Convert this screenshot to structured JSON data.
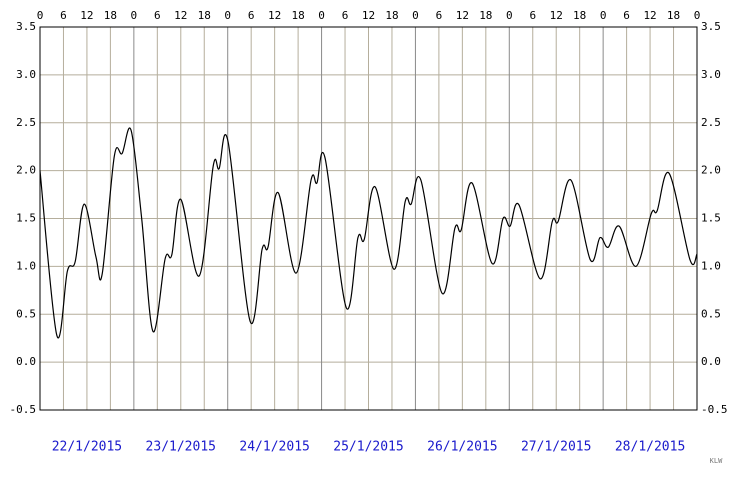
{
  "chart_data": {
    "type": "line",
    "x": [
      0,
      4.3,
      7,
      9,
      11.3,
      14.3,
      15.9,
      19,
      21,
      23.3,
      26,
      28.9,
      32,
      33.7,
      36,
      40.7,
      44.3,
      45.8,
      48.1,
      53.7,
      56.8,
      58.3,
      60.9,
      65.5,
      69.3,
      70.8,
      72.9,
      78.3,
      81.3,
      82.9,
      85.7,
      90.5,
      93.4,
      94.9,
      97.4,
      102.8,
      106.1,
      107.7,
      110.5,
      115.6,
      118.4,
      120.2,
      122.5,
      127.9,
      131,
      132.5,
      135.8,
      140.7,
      143.2,
      145.3,
      148.1,
      152.4,
      156.3,
      157.8,
      160.9,
      166.2,
      168
    ],
    "series": [
      {
        "color": "#000000",
        "values": [
          2.0,
          0.28,
          0.95,
          1.05,
          1.65,
          1.1,
          0.92,
          2.15,
          2.18,
          2.42,
          1.5,
          0.32,
          1.08,
          1.12,
          1.7,
          0.9,
          2.05,
          2.02,
          2.3,
          0.43,
          1.18,
          1.2,
          1.77,
          0.93,
          1.9,
          1.87,
          2.13,
          0.57,
          1.3,
          1.28,
          1.83,
          0.97,
          1.68,
          1.65,
          1.9,
          0.72,
          1.4,
          1.38,
          1.87,
          1.03,
          1.5,
          1.42,
          1.64,
          0.87,
          1.47,
          1.47,
          1.9,
          1.07,
          1.3,
          1.2,
          1.42,
          1.0,
          1.55,
          1.58,
          1.97,
          1.07,
          1.13
        ]
      }
    ],
    "xlim": [
      0,
      168
    ],
    "xticks": [
      0,
      6,
      12,
      18,
      {
        "value": 24,
        "label": "0"
      },
      {
        "value": 30,
        "label": "6"
      },
      {
        "value": 36,
        "label": "12"
      },
      {
        "value": 42,
        "label": "18"
      },
      {
        "value": 48,
        "label": "0"
      },
      {
        "value": 54,
        "label": "6"
      },
      {
        "value": 60,
        "label": "12"
      },
      {
        "value": 66,
        "label": "18"
      },
      {
        "value": 72,
        "label": "0"
      },
      {
        "value": 78,
        "label": "6"
      },
      {
        "value": 84,
        "label": "12"
      },
      {
        "value": 90,
        "label": "18"
      },
      {
        "value": 96,
        "label": "0"
      },
      {
        "value": 102,
        "label": "6"
      },
      {
        "value": 108,
        "label": "12"
      },
      {
        "value": 114,
        "label": "18"
      },
      {
        "value": 120,
        "label": "0"
      },
      {
        "value": 126,
        "label": "6"
      },
      {
        "value": 132,
        "label": "12"
      },
      {
        "value": 138,
        "label": "18"
      },
      {
        "value": 144,
        "label": "0"
      },
      {
        "value": 150,
        "label": "6"
      },
      {
        "value": 156,
        "label": "12"
      },
      {
        "value": 162,
        "label": "18"
      },
      {
        "value": 168,
        "label": "0"
      }
    ],
    "ylim": [
      -0.5,
      3.5
    ],
    "yticks": [
      -0.5,
      {
        "value": 0,
        "label": "0.0"
      },
      0.5,
      {
        "value": 1,
        "label": "1.0"
      },
      1.5,
      {
        "value": 2,
        "label": "2.0"
      },
      2.5,
      {
        "value": 3,
        "label": "3.0"
      },
      3.5
    ],
    "grid": true,
    "day_labels": [
      "22/1/2015",
      "23/1/2015",
      "24/1/2015",
      "25/1/2015",
      "26/1/2015",
      "27/1/2015",
      "28/1/2015"
    ],
    "credit": "KLW"
  }
}
